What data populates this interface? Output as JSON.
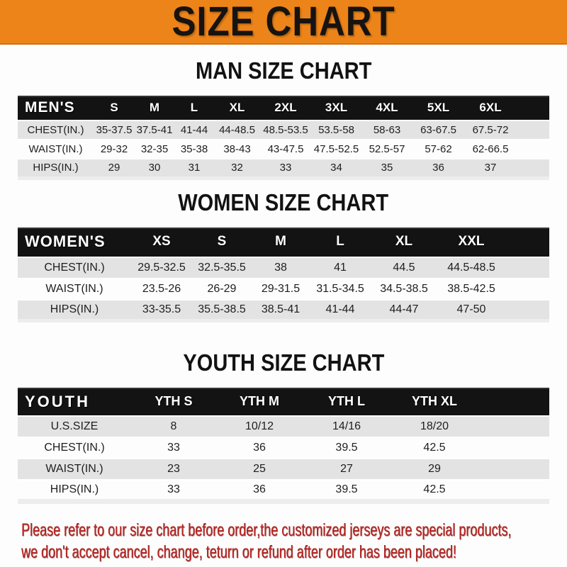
{
  "banner": {
    "title": "SIZE CHART",
    "bg_color": "#ec8419",
    "text_color": "#171310"
  },
  "sections": [
    {
      "id": "men",
      "title": "MAN SIZE CHART",
      "corner_label": "MEN'S",
      "columns": [
        "S",
        "M",
        "L",
        "XL",
        "2XL",
        "3XL",
        "4XL",
        "5XL",
        "6XL"
      ],
      "rows": [
        {
          "label": "CHEST(IN.)",
          "values": [
            "35-37.5",
            "37.5-41",
            "41-44",
            "44-48.5",
            "48.5-53.5",
            "53.5-58",
            "58-63",
            "63-67.5",
            "67.5-72"
          ]
        },
        {
          "label": "WAIST(IN.)",
          "values": [
            "29-32",
            "32-35",
            "35-38",
            "38-43",
            "43-47.5",
            "47.5-52.5",
            "52.5-57",
            "57-62",
            "62-66.5"
          ]
        },
        {
          "label": "HIPS(IN.)",
          "values": [
            "29",
            "30",
            "31",
            "32",
            "33",
            "34",
            "35",
            "36",
            "37"
          ]
        }
      ]
    },
    {
      "id": "women",
      "title": "WOMEN SIZE CHART",
      "corner_label": "WOMEN'S",
      "columns": [
        "XS",
        "S",
        "M",
        "L",
        "XL",
        "XXL"
      ],
      "rows": [
        {
          "label": "CHEST(IN.)",
          "values": [
            "29.5-32.5",
            "32.5-35.5",
            "38",
            "41",
            "44.5",
            "44.5-48.5"
          ]
        },
        {
          "label": "WAIST(IN.)",
          "values": [
            "23.5-26",
            "26-29",
            "29-31.5",
            "31.5-34.5",
            "34.5-38.5",
            "38.5-42.5"
          ]
        },
        {
          "label": "HIPS(IN.)",
          "values": [
            "33-35.5",
            "35.5-38.5",
            "38.5-41",
            "41-44",
            "44-47",
            "47-50"
          ]
        }
      ]
    },
    {
      "id": "youth",
      "title": "YOUTH SIZE CHART",
      "corner_label": "YOUTH",
      "columns": [
        "YTH S",
        "YTH M",
        "YTH L",
        "YTH XL"
      ],
      "rows": [
        {
          "label": "U.S.SIZE",
          "values": [
            "8",
            "10/12",
            "14/16",
            "18/20"
          ]
        },
        {
          "label": "CHEST(IN.)",
          "values": [
            "33",
            "36",
            "39.5",
            "42.5"
          ]
        },
        {
          "label": "WAIST(IN.)",
          "values": [
            "23",
            "25",
            "27",
            "29"
          ]
        },
        {
          "label": "HIPS(IN.)",
          "values": [
            "33",
            "36",
            "39.5",
            "42.5"
          ]
        }
      ]
    }
  ],
  "footer": {
    "line1": "Please refer to our size chart before order,the customized jerseys are special products,",
    "line2": "we don't accept cancel, change, teturn or refund after order has been placed!",
    "text_color": "#b02824"
  },
  "colors": {
    "header_bar_bg": "#131313",
    "row_alt_bg": "#e3e3e3",
    "row_bg": "#fdfdfd"
  }
}
